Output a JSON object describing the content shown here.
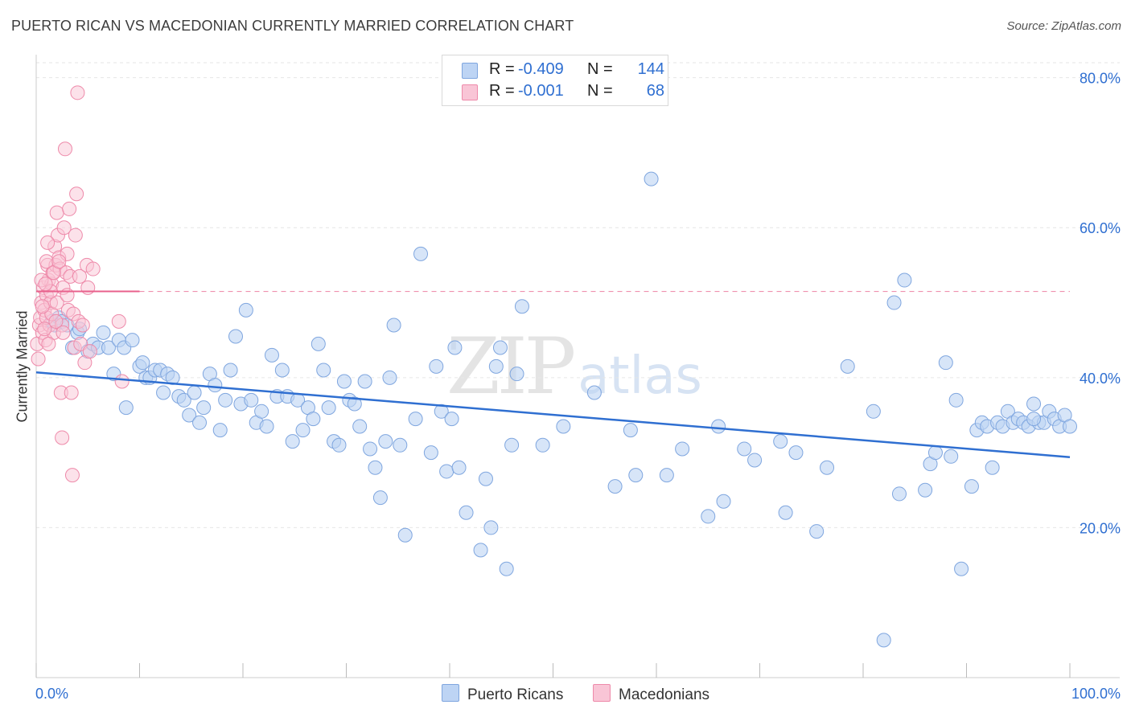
{
  "title": "PUERTO RICAN VS MACEDONIAN CURRENTLY MARRIED CORRELATION CHART",
  "source": "Source: ZipAtlas.com",
  "watermark": {
    "zip": "ZIP",
    "atlas": "atlas"
  },
  "legend_top": [
    {
      "r_label": "R =",
      "r_value": "-0.409",
      "n_label": "N =",
      "n_value": "144"
    },
    {
      "r_label": "R =",
      "r_value": "-0.001",
      "n_label": "N =",
      "n_value": "68"
    }
  ],
  "legend_bottom": [
    "Puerto Ricans",
    "Macedonians"
  ],
  "colors": {
    "blue_fill": "#bdd4f4",
    "blue_stroke": "#7fa6df",
    "blue_line": "#2f6fd1",
    "pink_fill": "#f9c5d6",
    "pink_stroke": "#ee8aaa",
    "pink_line": "#e8618c",
    "grid": "#e6e6e6",
    "axis_text": "#2f6fd1"
  },
  "chart_data": {
    "type": "scatter",
    "title": "PUERTO RICAN VS MACEDONIAN CURRENTLY MARRIED CORRELATION CHART",
    "xlabel": "",
    "ylabel": "Currently Married",
    "xlim": [
      0,
      100
    ],
    "ylim": [
      0,
      82
    ],
    "x_tick_labels": [
      "0.0%",
      "100.0%"
    ],
    "y_ticks": [
      20,
      40,
      60,
      80
    ],
    "y_tick_labels": [
      "20.0%",
      "40.0%",
      "60.0%",
      "80.0%"
    ],
    "grid": true,
    "series": [
      {
        "name": "Puerto Ricans",
        "R": -0.409,
        "N": 144,
        "trend": {
          "x": [
            0,
            100
          ],
          "y": [
            40.7,
            29.4
          ],
          "style": "solid"
        },
        "points": [
          [
            1.5,
            47.5
          ],
          [
            1.8,
            47.0
          ],
          [
            2.2,
            48.0
          ],
          [
            2.5,
            47.5
          ],
          [
            3.0,
            47.0
          ],
          [
            3.5,
            44.0
          ],
          [
            4.0,
            46.0
          ],
          [
            4.2,
            46.5
          ],
          [
            5.0,
            43.5
          ],
          [
            5.5,
            44.5
          ],
          [
            6.0,
            44.0
          ],
          [
            6.5,
            46.0
          ],
          [
            7.0,
            44.0
          ],
          [
            7.5,
            40.5
          ],
          [
            8.0,
            45.0
          ],
          [
            8.5,
            44.0
          ],
          [
            8.7,
            36.0
          ],
          [
            9.3,
            45.0
          ],
          [
            10.0,
            41.5
          ],
          [
            10.3,
            42.0
          ],
          [
            10.6,
            40.0
          ],
          [
            11.0,
            40.0
          ],
          [
            11.5,
            41.0
          ],
          [
            12.0,
            41.0
          ],
          [
            12.3,
            38.0
          ],
          [
            12.7,
            40.5
          ],
          [
            13.2,
            40.0
          ],
          [
            13.8,
            37.5
          ],
          [
            14.3,
            37.0
          ],
          [
            14.8,
            35.0
          ],
          [
            15.3,
            38.0
          ],
          [
            15.8,
            34.0
          ],
          [
            16.2,
            36.0
          ],
          [
            16.8,
            40.5
          ],
          [
            17.3,
            39.0
          ],
          [
            17.8,
            33.0
          ],
          [
            18.3,
            37.0
          ],
          [
            18.8,
            41.0
          ],
          [
            19.3,
            45.5
          ],
          [
            19.8,
            36.5
          ],
          [
            20.3,
            49.0
          ],
          [
            20.8,
            37.0
          ],
          [
            21.3,
            34.0
          ],
          [
            21.8,
            35.5
          ],
          [
            22.3,
            33.5
          ],
          [
            22.8,
            43.0
          ],
          [
            23.3,
            37.5
          ],
          [
            23.8,
            41.0
          ],
          [
            24.3,
            37.5
          ],
          [
            24.8,
            31.5
          ],
          [
            25.3,
            37.0
          ],
          [
            25.8,
            33.0
          ],
          [
            26.3,
            36.0
          ],
          [
            26.8,
            34.5
          ],
          [
            27.3,
            44.5
          ],
          [
            27.8,
            41.0
          ],
          [
            28.3,
            36.0
          ],
          [
            28.8,
            31.5
          ],
          [
            29.3,
            31.0
          ],
          [
            29.8,
            39.5
          ],
          [
            30.3,
            37.0
          ],
          [
            30.8,
            36.5
          ],
          [
            31.3,
            33.5
          ],
          [
            31.8,
            39.5
          ],
          [
            32.3,
            30.5
          ],
          [
            32.8,
            28.0
          ],
          [
            33.3,
            24.0
          ],
          [
            33.8,
            31.5
          ],
          [
            34.2,
            40.0
          ],
          [
            34.6,
            47.0
          ],
          [
            35.2,
            31.0
          ],
          [
            35.7,
            19.0
          ],
          [
            36.7,
            34.5
          ],
          [
            37.2,
            56.5
          ],
          [
            38.2,
            30.0
          ],
          [
            38.7,
            41.5
          ],
          [
            39.2,
            35.5
          ],
          [
            39.7,
            27.5
          ],
          [
            40.2,
            34.5
          ],
          [
            40.5,
            44.0
          ],
          [
            40.9,
            28.0
          ],
          [
            41.6,
            22.0
          ],
          [
            43.0,
            17.0
          ],
          [
            43.5,
            26.5
          ],
          [
            44.0,
            20.0
          ],
          [
            44.5,
            41.5
          ],
          [
            44.9,
            44.0
          ],
          [
            45.5,
            14.5
          ],
          [
            46.0,
            31.0
          ],
          [
            46.5,
            40.5
          ],
          [
            47.0,
            49.5
          ],
          [
            49.0,
            31.0
          ],
          [
            51.0,
            33.5
          ],
          [
            54.0,
            38.0
          ],
          [
            56.0,
            25.5
          ],
          [
            57.5,
            33.0
          ],
          [
            58.0,
            27.0
          ],
          [
            59.5,
            66.5
          ],
          [
            61.0,
            27.0
          ],
          [
            62.5,
            30.5
          ],
          [
            65.0,
            21.5
          ],
          [
            66.0,
            33.5
          ],
          [
            66.5,
            23.5
          ],
          [
            68.5,
            30.5
          ],
          [
            69.5,
            29.0
          ],
          [
            72.0,
            31.5
          ],
          [
            72.5,
            22.0
          ],
          [
            73.5,
            30.0
          ],
          [
            75.5,
            19.5
          ],
          [
            76.5,
            28.0
          ],
          [
            78.5,
            41.5
          ],
          [
            81.0,
            35.5
          ],
          [
            82.0,
            5.0
          ],
          [
            83.0,
            50.0
          ],
          [
            83.5,
            24.5
          ],
          [
            84.0,
            53.0
          ],
          [
            86.0,
            25.0
          ],
          [
            86.5,
            28.5
          ],
          [
            87.0,
            30.0
          ],
          [
            88.0,
            42.0
          ],
          [
            88.5,
            29.5
          ],
          [
            89.0,
            37.0
          ],
          [
            89.5,
            14.5
          ],
          [
            90.5,
            25.5
          ],
          [
            91.0,
            33.0
          ],
          [
            91.5,
            34.0
          ],
          [
            92.0,
            33.5
          ],
          [
            92.5,
            28.0
          ],
          [
            93.0,
            34.0
          ],
          [
            93.5,
            33.5
          ],
          [
            94.0,
            35.5
          ],
          [
            94.5,
            34.0
          ],
          [
            95.0,
            34.5
          ],
          [
            95.5,
            34.0
          ],
          [
            96.0,
            33.5
          ],
          [
            96.5,
            36.5
          ],
          [
            97.0,
            34.0
          ],
          [
            97.5,
            34.0
          ],
          [
            98.0,
            35.5
          ],
          [
            98.5,
            34.5
          ],
          [
            99.0,
            33.5
          ],
          [
            99.5,
            35.0
          ],
          [
            100.0,
            33.5
          ],
          [
            96.5,
            34.5
          ]
        ]
      },
      {
        "name": "Macedonians",
        "R": -0.001,
        "N": 68,
        "trend": {
          "x": [
            0,
            10
          ],
          "y": [
            51.5,
            51.5
          ],
          "style": "solid",
          "extended_to_x": 100,
          "extended_style": "dashed"
        },
        "points": [
          [
            0.1,
            44.5
          ],
          [
            0.2,
            42.5
          ],
          [
            0.3,
            47.0
          ],
          [
            0.4,
            48.0
          ],
          [
            0.5,
            50.0
          ],
          [
            0.6,
            46.0
          ],
          [
            0.7,
            52.0
          ],
          [
            0.8,
            49.0
          ],
          [
            0.9,
            45.0
          ],
          [
            1.0,
            51.0
          ],
          [
            1.1,
            55.0
          ],
          [
            1.2,
            53.0
          ],
          [
            1.3,
            47.0
          ],
          [
            1.4,
            50.0
          ],
          [
            1.5,
            52.5
          ],
          [
            1.6,
            54.0
          ],
          [
            1.7,
            46.0
          ],
          [
            1.8,
            57.5
          ],
          [
            1.9,
            55.0
          ],
          [
            2.0,
            62.0
          ],
          [
            2.1,
            59.0
          ],
          [
            2.2,
            56.0
          ],
          [
            2.3,
            54.5
          ],
          [
            2.4,
            38.0
          ],
          [
            2.5,
            32.0
          ],
          [
            2.6,
            52.0
          ],
          [
            2.7,
            60.0
          ],
          [
            2.8,
            70.5
          ],
          [
            2.9,
            54.0
          ],
          [
            3.0,
            56.5
          ],
          [
            3.1,
            49.0
          ],
          [
            3.2,
            62.5
          ],
          [
            3.3,
            53.5
          ],
          [
            3.4,
            38.0
          ],
          [
            3.5,
            27.0
          ],
          [
            3.6,
            48.5
          ],
          [
            3.7,
            44.0
          ],
          [
            3.8,
            59.0
          ],
          [
            3.9,
            64.5
          ],
          [
            4.0,
            78.0
          ],
          [
            4.1,
            47.5
          ],
          [
            4.2,
            53.5
          ],
          [
            4.3,
            44.5
          ],
          [
            4.5,
            47.0
          ],
          [
            4.7,
            42.0
          ],
          [
            4.9,
            55.0
          ],
          [
            5.0,
            52.0
          ],
          [
            5.2,
            43.5
          ],
          [
            5.5,
            54.5
          ],
          [
            1.0,
            48.0
          ],
          [
            1.5,
            48.5
          ],
          [
            2.0,
            50.0
          ],
          [
            2.5,
            47.0
          ],
          [
            3.0,
            51.0
          ],
          [
            0.5,
            53.0
          ],
          [
            1.0,
            55.5
          ],
          [
            0.8,
            46.5
          ],
          [
            1.2,
            44.5
          ],
          [
            0.6,
            49.5
          ],
          [
            1.7,
            54.0
          ],
          [
            2.2,
            55.5
          ],
          [
            1.4,
            51.5
          ],
          [
            0.9,
            52.5
          ],
          [
            1.9,
            47.5
          ],
          [
            8.0,
            47.5
          ],
          [
            8.3,
            39.5
          ],
          [
            2.6,
            46.0
          ],
          [
            1.1,
            58.0
          ]
        ]
      }
    ]
  }
}
